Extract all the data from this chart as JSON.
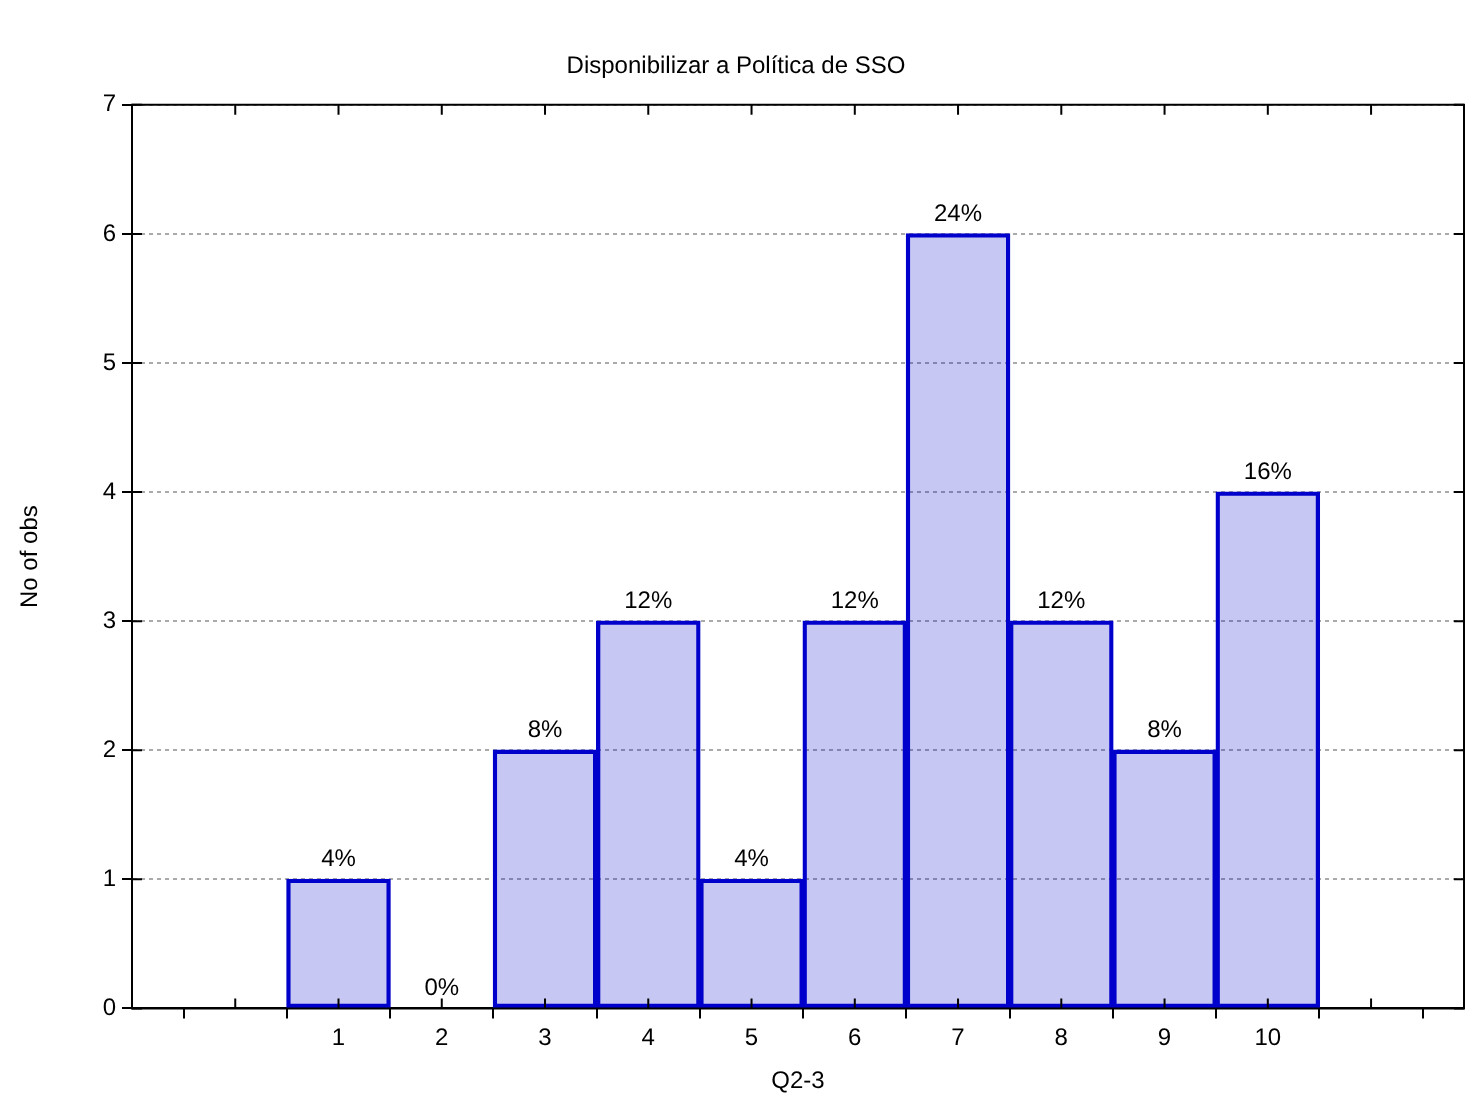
{
  "chart_data": {
    "type": "bar",
    "title": "Disponibilizar a Política de SSO",
    "xlabel": "Q2-3",
    "ylabel": "No of obs",
    "x": [
      1,
      2,
      3,
      4,
      5,
      6,
      7,
      8,
      9,
      10
    ],
    "values": [
      1,
      0,
      2,
      3,
      1,
      3,
      6,
      3,
      2,
      4
    ],
    "annotations": [
      {
        "text": "4%",
        "x": 1,
        "y": 1
      },
      {
        "text": "0%",
        "x": 2,
        "y": 0
      },
      {
        "text": "8%",
        "x": 3,
        "y": 2
      },
      {
        "text": "12%",
        "x": 4,
        "y": 3
      },
      {
        "text": "4%",
        "x": 5,
        "y": 1
      },
      {
        "text": "12%",
        "x": 6,
        "y": 3
      },
      {
        "text": "24%",
        "x": 7,
        "y": 6
      },
      {
        "text": "12%",
        "x": 8,
        "y": 3
      },
      {
        "text": "8%",
        "x": 9,
        "y": 2
      },
      {
        "text": "16%",
        "x": 10,
        "y": 4
      }
    ],
    "color": "#0000cc",
    "xlim": [
      -1,
      11.9
    ],
    "xticks": [
      {
        "value": 0,
        "label": null
      },
      1,
      2,
      3,
      4,
      5,
      6,
      7,
      8,
      9,
      10,
      {
        "value": 11,
        "label": null
      }
    ],
    "ylim": [
      0,
      7
    ],
    "yticks": [
      0,
      1,
      2,
      3,
      4,
      5,
      6,
      7
    ],
    "grid": "y"
  }
}
